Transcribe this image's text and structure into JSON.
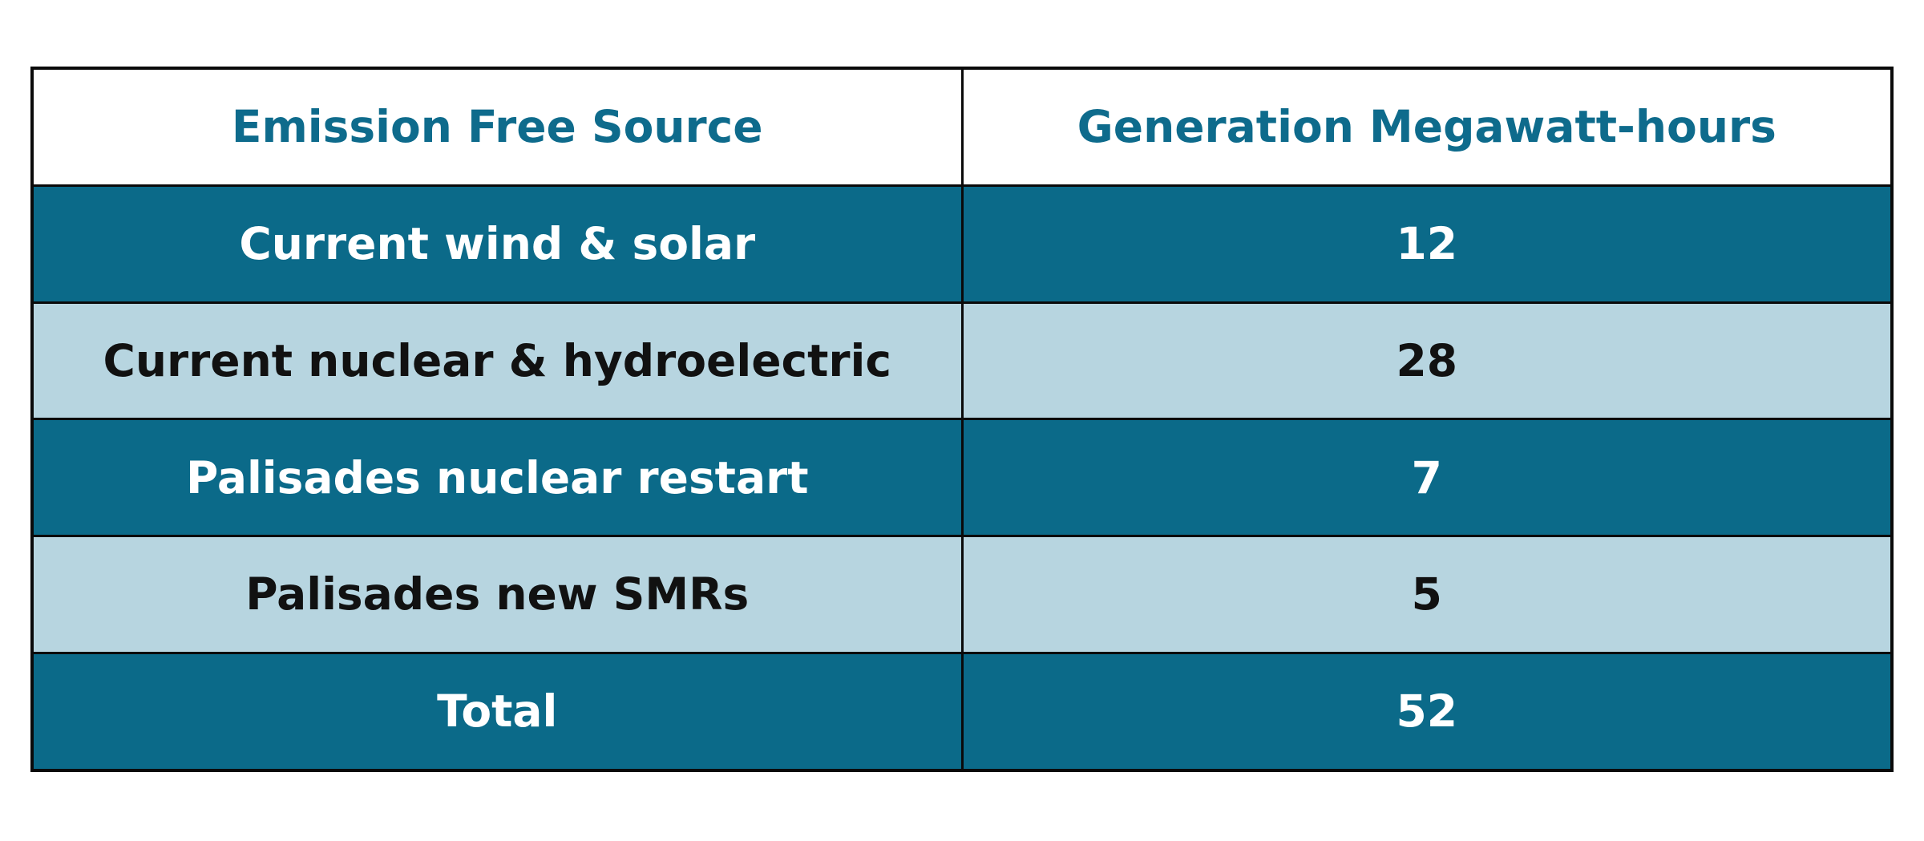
{
  "table": {
    "columns": [
      {
        "label": "Emission Free Source"
      },
      {
        "label": "Generation Megawatt-hours"
      }
    ],
    "rows": [
      {
        "source": "Current wind & solar",
        "value": "12"
      },
      {
        "source": "Current nuclear & hydroelectric",
        "value": "28"
      },
      {
        "source": "Palisades nuclear restart",
        "value": "7"
      },
      {
        "source": "Palisades new SMRs",
        "value": "5"
      },
      {
        "source": "Total",
        "value": "52"
      }
    ],
    "colors": {
      "dark_row_background": "#0b6a89",
      "light_row_background": "#b7d5e0",
      "header_text": "#0e6b8c",
      "dark_row_text": "#ffffff",
      "light_row_text": "#111111",
      "grid_border": "#0a0a0a",
      "page_background": "#ffffff"
    }
  },
  "chart_data": {
    "type": "table",
    "columns": [
      "Emission Free Source",
      "Generation Megawatt-hours"
    ],
    "rows": [
      [
        "Current wind & solar",
        12
      ],
      [
        "Current nuclear & hydroelectric",
        28
      ],
      [
        "Palisades nuclear restart",
        7
      ],
      [
        "Palisades new SMRs",
        5
      ],
      [
        "Total",
        52
      ]
    ]
  }
}
